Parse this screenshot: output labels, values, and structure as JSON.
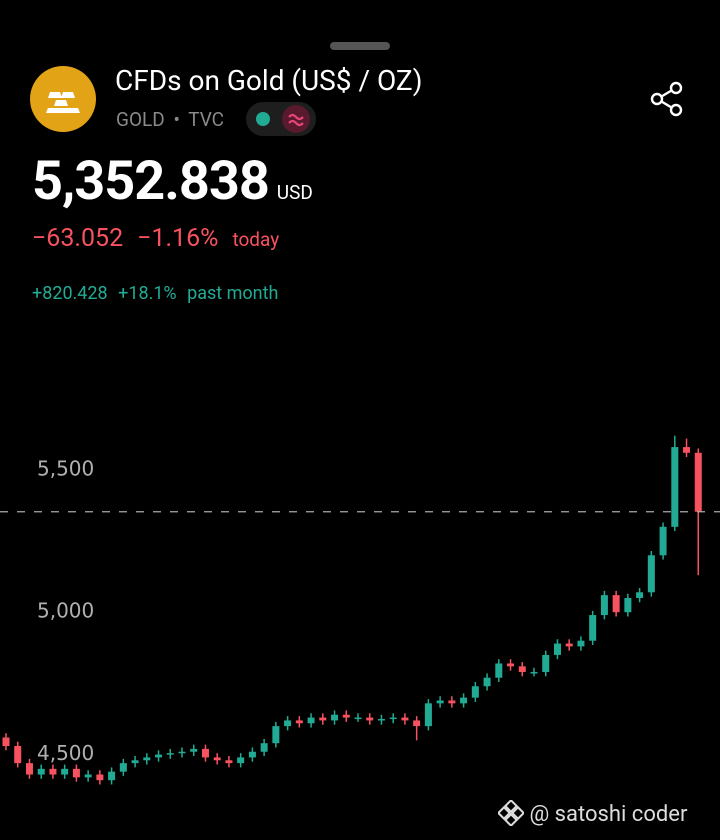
{
  "header": {
    "title": "CFDs on Gold (US$ / OZ)",
    "symbol": "GOLD",
    "separator": "•",
    "exchange": "TVC",
    "price": "5,352.838",
    "currency": "USD",
    "change_abs": "−63.052",
    "change_pct": "−1.16%",
    "change_period": "today",
    "month_abs": "+820.428",
    "month_pct": "+18.1%",
    "month_period": "past month"
  },
  "watermark": "@ satoshi coder",
  "chart_data": {
    "type": "candlestick",
    "up_color": "#22ab94",
    "down_color": "#f7525f",
    "ylim": [
      4200,
      5640
    ],
    "yticks": [
      {
        "value": 4500,
        "label": "4,500"
      },
      {
        "value": 5000,
        "label": "5,000"
      },
      {
        "value": 5500,
        "label": "5,500"
      }
    ],
    "open": [
      4560,
      4530,
      4470,
      4430,
      4450,
      4430,
      4450,
      4420,
      4430,
      4410,
      4440,
      4470,
      4480,
      4490,
      4500,
      4505,
      4510,
      4520,
      4490,
      4480,
      4470,
      4490,
      4510,
      4540,
      4600,
      4620,
      4610,
      4630,
      4620,
      4640,
      4630,
      4630,
      4620,
      4625,
      4630,
      4620,
      4600,
      4680,
      4690,
      4680,
      4700,
      4740,
      4770,
      4820,
      4810,
      4790,
      4790,
      4850,
      4890,
      4880,
      4900,
      4990,
      5060,
      5000,
      5050,
      5070,
      5200,
      5300,
      5580,
      5560
    ],
    "high": [
      4575,
      4545,
      4485,
      4465,
      4465,
      4465,
      4465,
      4445,
      4445,
      4455,
      4485,
      4495,
      4505,
      4515,
      4520,
      4525,
      4535,
      4535,
      4505,
      4495,
      4505,
      4525,
      4555,
      4615,
      4635,
      4635,
      4645,
      4645,
      4655,
      4655,
      4645,
      4645,
      4640,
      4645,
      4645,
      4635,
      4695,
      4705,
      4705,
      4715,
      4755,
      4785,
      4835,
      4835,
      4825,
      4805,
      4865,
      4905,
      4905,
      4915,
      5005,
      5075,
      5075,
      5065,
      5085,
      5215,
      5315,
      5620,
      5610,
      5575
    ],
    "low": [
      4515,
      4455,
      4415,
      4415,
      4415,
      4415,
      4405,
      4405,
      4395,
      4395,
      4425,
      4455,
      4465,
      4475,
      4485,
      4490,
      4495,
      4475,
      4465,
      4455,
      4455,
      4475,
      4495,
      4525,
      4585,
      4595,
      4595,
      4605,
      4605,
      4615,
      4615,
      4605,
      4605,
      4610,
      4605,
      4550,
      4585,
      4665,
      4665,
      4665,
      4685,
      4725,
      4755,
      4795,
      4775,
      4775,
      4775,
      4835,
      4865,
      4865,
      4885,
      4975,
      4985,
      4985,
      5035,
      5055,
      5185,
      5285,
      5545,
      5130
    ],
    "close": [
      4530,
      4470,
      4430,
      4450,
      4430,
      4450,
      4420,
      4430,
      4410,
      4440,
      4470,
      4480,
      4490,
      4500,
      4505,
      4510,
      4520,
      4490,
      4480,
      4470,
      4490,
      4510,
      4540,
      4600,
      4620,
      4610,
      4630,
      4620,
      4640,
      4630,
      4630,
      4620,
      4625,
      4630,
      4620,
      4600,
      4680,
      4690,
      4680,
      4700,
      4740,
      4770,
      4820,
      4810,
      4790,
      4790,
      4850,
      4890,
      4880,
      4900,
      4990,
      5060,
      5000,
      5050,
      5070,
      5200,
      5300,
      5580,
      5560,
      5352.838
    ]
  }
}
